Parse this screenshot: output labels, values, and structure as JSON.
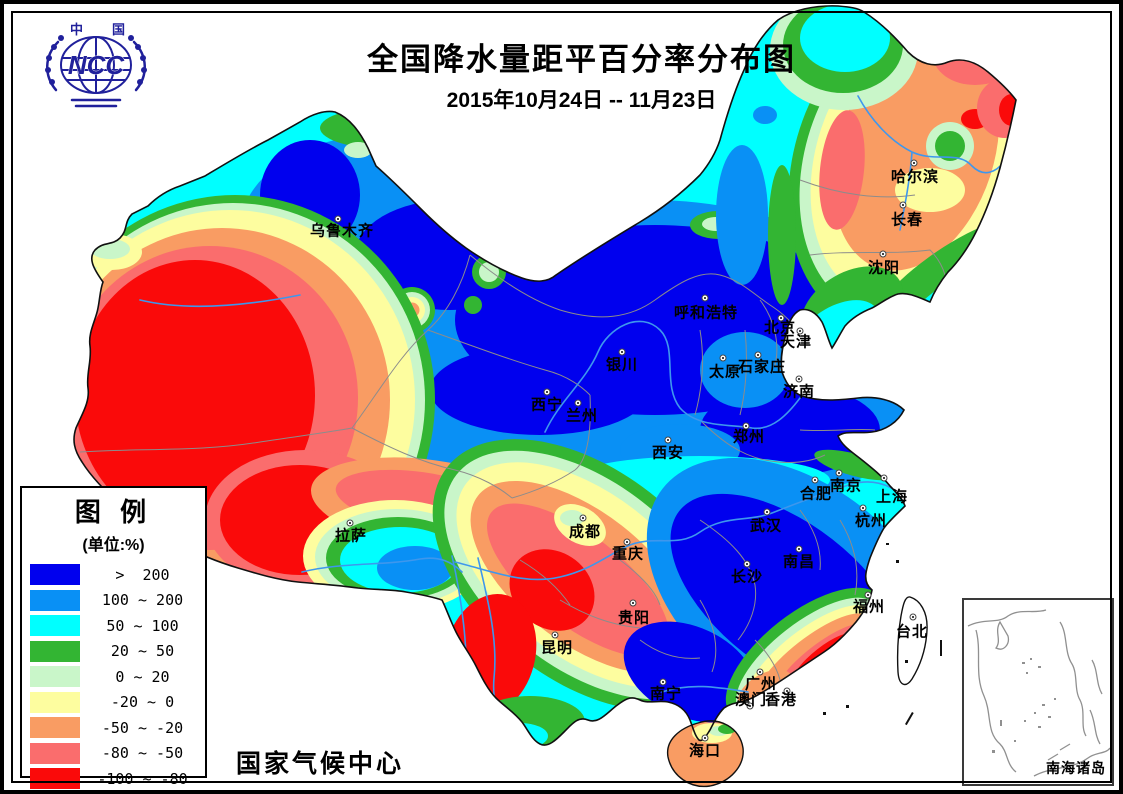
{
  "page": {
    "title": "全国降水量距平百分率分布图",
    "subtitle": "2015年10月24日 -- 11月23日",
    "credit": "国家气候中心",
    "logo": {
      "org_abbr": "NCC",
      "char_left": "中",
      "char_right": "国"
    }
  },
  "legend": {
    "title": "图 例",
    "unit": "(单位:%)",
    "items": [
      {
        "label": ">  200",
        "color": "#0000EE"
      },
      {
        "label": "100 ~ 200",
        "color": "#0990F5"
      },
      {
        "label": "50 ~ 100",
        "color": "#00FFFF"
      },
      {
        "label": "20 ~ 50",
        "color": "#33B533"
      },
      {
        "label": "0 ~ 20",
        "color": "#C9F6C9"
      },
      {
        "label": "-20 ~ 0",
        "color": "#FDFD9F"
      },
      {
        "label": "-50 ~ -20",
        "color": "#F99C63"
      },
      {
        "label": "-80 ~ -50",
        "color": "#FA6D6D"
      },
      {
        "label": "-100 ~ -80",
        "color": "#FA0A0A"
      }
    ]
  },
  "map": {
    "inset": {
      "label": "南海诸岛"
    },
    "cities": [
      {
        "name": "乌鲁木齐",
        "dot": [
          338,
          219
        ],
        "label": [
          342,
          230
        ]
      },
      {
        "name": "哈尔滨",
        "dot": [
          914,
          163
        ],
        "label": [
          915,
          176
        ]
      },
      {
        "name": "长春",
        "dot": [
          903,
          205
        ],
        "label": [
          907,
          219
        ]
      },
      {
        "name": "沈阳",
        "dot": [
          883,
          254
        ],
        "label": [
          884,
          267
        ]
      },
      {
        "name": "呼和浩特",
        "dot": [
          705,
          298
        ],
        "label": [
          706,
          312
        ]
      },
      {
        "name": "北京",
        "dot": [
          781,
          318
        ],
        "label": [
          780,
          327
        ]
      },
      {
        "name": "天津",
        "dot": [
          800,
          331
        ],
        "label": [
          796,
          341
        ]
      },
      {
        "name": "银川",
        "dot": [
          622,
          352
        ],
        "label": [
          622,
          364
        ]
      },
      {
        "name": "太原",
        "dot": [
          723,
          358
        ],
        "label": [
          725,
          371
        ]
      },
      {
        "name": "石家庄",
        "dot": [
          758,
          355
        ],
        "label": [
          762,
          366
        ]
      },
      {
        "name": "济南",
        "dot": [
          799,
          379
        ],
        "label": [
          799,
          391
        ]
      },
      {
        "name": "郑州",
        "dot": [
          746,
          426
        ],
        "label": [
          749,
          436
        ]
      },
      {
        "name": "西安",
        "dot": [
          668,
          440
        ],
        "label": [
          668,
          452
        ]
      },
      {
        "name": "西宁",
        "dot": [
          547,
          392
        ],
        "label": [
          547,
          404
        ]
      },
      {
        "name": "兰州",
        "dot": [
          578,
          403
        ],
        "label": [
          582,
          415
        ]
      },
      {
        "name": "拉萨",
        "dot": [
          350,
          523
        ],
        "label": [
          351,
          535
        ]
      },
      {
        "name": "成都",
        "dot": [
          583,
          518
        ],
        "label": [
          585,
          531
        ]
      },
      {
        "name": "重庆",
        "dot": [
          627,
          542
        ],
        "label": [
          628,
          553
        ]
      },
      {
        "name": "贵阳",
        "dot": [
          633,
          603
        ],
        "label": [
          634,
          617
        ]
      },
      {
        "name": "昆明",
        "dot": [
          555,
          635
        ],
        "label": [
          557,
          647
        ]
      },
      {
        "name": "武汉",
        "dot": [
          767,
          512
        ],
        "label": [
          766,
          525
        ]
      },
      {
        "name": "合肥",
        "dot": [
          815,
          480
        ],
        "label": [
          816,
          493
        ]
      },
      {
        "name": "南京",
        "dot": [
          839,
          473
        ],
        "label": [
          846,
          485
        ]
      },
      {
        "name": "上海",
        "dot": [
          884,
          478
        ],
        "label": [
          892,
          496
        ]
      },
      {
        "name": "杭州",
        "dot": [
          863,
          508
        ],
        "label": [
          871,
          520
        ]
      },
      {
        "name": "南昌",
        "dot": [
          799,
          549
        ],
        "label": [
          799,
          561
        ]
      },
      {
        "name": "长沙",
        "dot": [
          747,
          564
        ],
        "label": [
          747,
          576
        ]
      },
      {
        "name": "福州",
        "dot": [
          868,
          595
        ],
        "label": [
          869,
          606
        ]
      },
      {
        "name": "台北",
        "dot": [
          913,
          617
        ],
        "label": [
          912,
          631
        ]
      },
      {
        "name": "广州",
        "dot": [
          760,
          672
        ],
        "label": [
          761,
          683
        ]
      },
      {
        "name": "澳门",
        "dot": [
          750,
          706
        ],
        "label": [
          751,
          699
        ]
      },
      {
        "name": "香港",
        "dot": [
          787,
          691
        ],
        "label": [
          781,
          699
        ]
      },
      {
        "name": "南宁",
        "dot": [
          663,
          682
        ],
        "label": [
          666,
          693
        ]
      },
      {
        "name": "海口",
        "dot": [
          705,
          738
        ],
        "label": [
          705,
          750
        ]
      }
    ]
  }
}
